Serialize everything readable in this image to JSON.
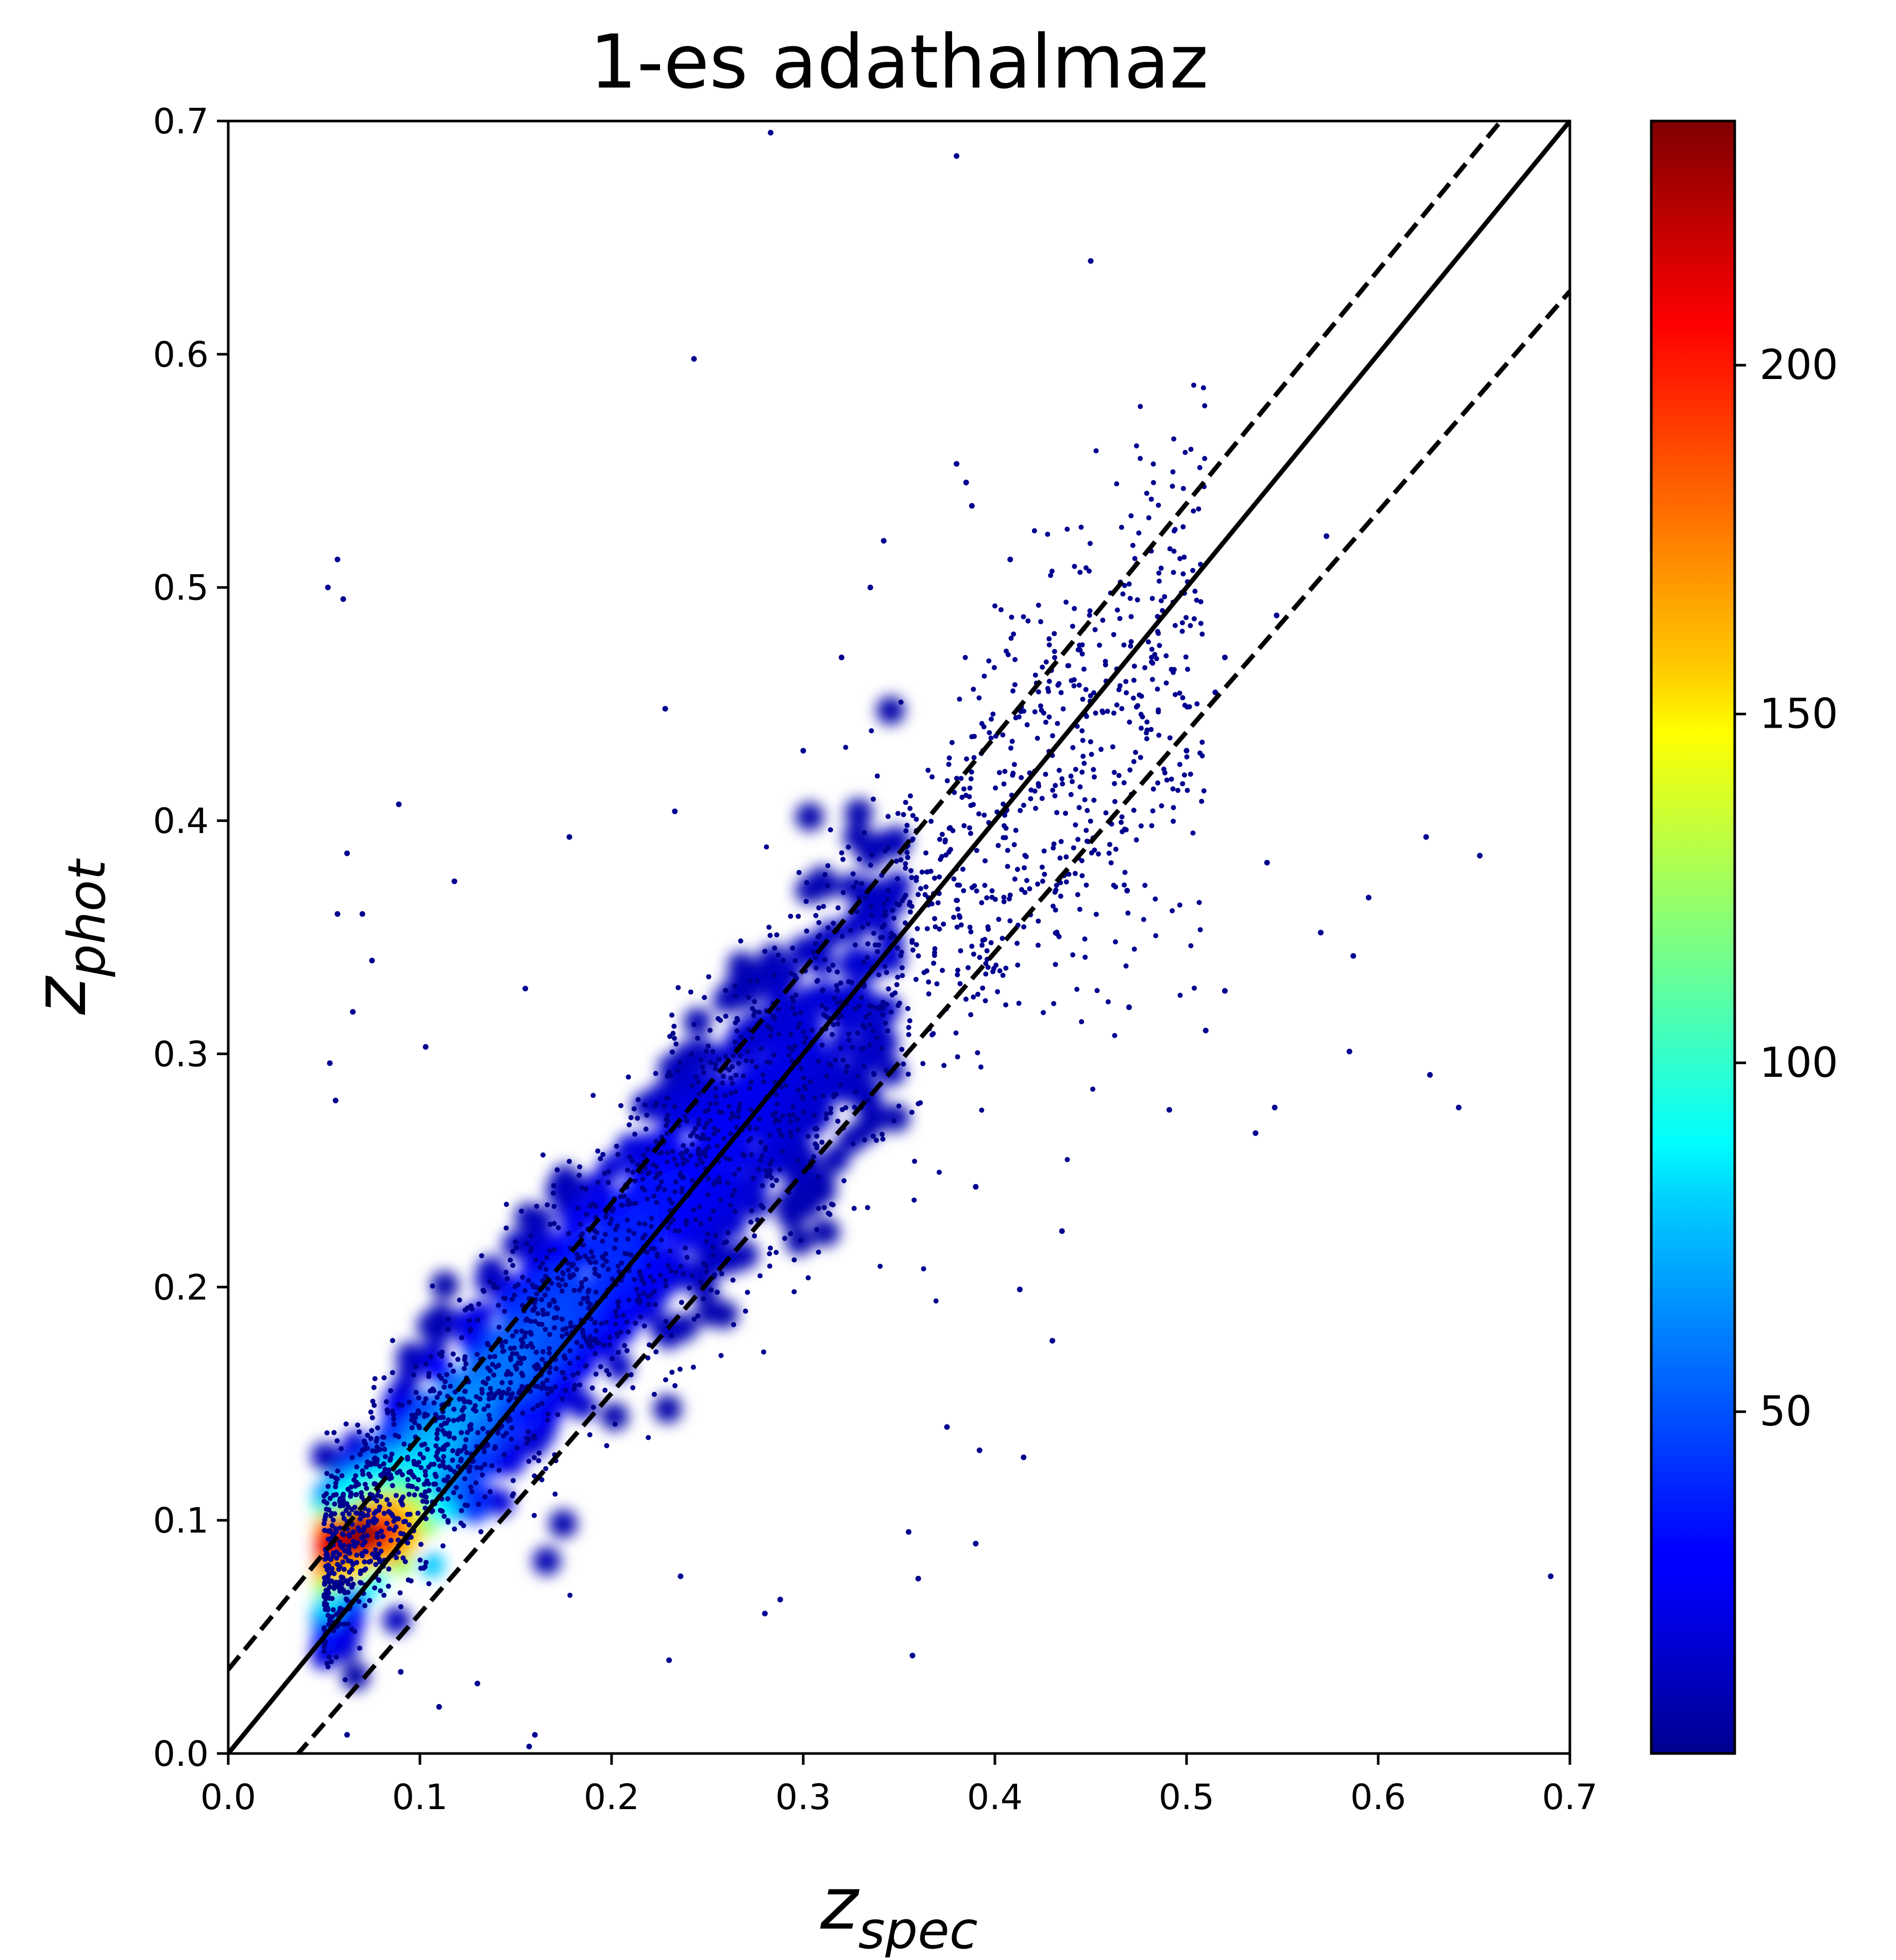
{
  "chart_data": {
    "type": "scatter",
    "title": "1-es adathalmaz",
    "xlabel": {
      "base": "z",
      "sub": "spec"
    },
    "ylabel": {
      "base": "z",
      "sub": "phot"
    },
    "xlim": [
      0.0,
      0.7
    ],
    "ylim": [
      0.0,
      0.7
    ],
    "xticks": [
      "0.0",
      "0.1",
      "0.2",
      "0.3",
      "0.4",
      "0.5",
      "0.6",
      "0.7"
    ],
    "yticks": [
      "0.0",
      "0.1",
      "0.2",
      "0.3",
      "0.4",
      "0.5",
      "0.6",
      "0.7"
    ],
    "grid": false,
    "colormap": "jet",
    "colorbar": {
      "range": [
        1,
        235
      ],
      "ticks": [
        50,
        100,
        150,
        200
      ],
      "tick_labels": [
        "50",
        "100",
        "150",
        "200"
      ]
    },
    "reference_lines": [
      {
        "style": "solid",
        "slope": 1.0,
        "intercept": 0.0
      },
      {
        "style": "dashed",
        "slope": 1.0,
        "intercept": 0.036
      },
      {
        "style": "dashed",
        "slope": 0.945,
        "intercept": -0.0345
      }
    ],
    "density_core": {
      "x": 0.075,
      "y": 0.092
    },
    "outliers": [
      [
        0.283,
        0.695
      ],
      [
        0.38,
        0.685
      ],
      [
        0.45,
        0.64
      ],
      [
        0.243,
        0.598
      ],
      [
        0.052,
        0.5
      ],
      [
        0.057,
        0.512
      ],
      [
        0.06,
        0.495
      ],
      [
        0.38,
        0.553
      ],
      [
        0.385,
        0.545
      ],
      [
        0.388,
        0.535
      ],
      [
        0.408,
        0.512
      ],
      [
        0.342,
        0.52
      ],
      [
        0.335,
        0.5
      ],
      [
        0.228,
        0.448
      ],
      [
        0.062,
        0.386
      ],
      [
        0.089,
        0.407
      ],
      [
        0.118,
        0.374
      ],
      [
        0.057,
        0.36
      ],
      [
        0.07,
        0.36
      ],
      [
        0.075,
        0.34
      ],
      [
        0.065,
        0.318
      ],
      [
        0.053,
        0.296
      ],
      [
        0.056,
        0.28
      ],
      [
        0.155,
        0.328
      ],
      [
        0.103,
        0.303
      ],
      [
        0.233,
        0.404
      ],
      [
        0.178,
        0.393
      ],
      [
        0.573,
        0.522
      ],
      [
        0.547,
        0.488
      ],
      [
        0.625,
        0.393
      ],
      [
        0.653,
        0.385
      ],
      [
        0.595,
        0.367
      ],
      [
        0.57,
        0.352
      ],
      [
        0.587,
        0.342
      ],
      [
        0.585,
        0.301
      ],
      [
        0.627,
        0.291
      ],
      [
        0.642,
        0.277
      ],
      [
        0.546,
        0.277
      ],
      [
        0.536,
        0.266
      ],
      [
        0.491,
        0.276
      ],
      [
        0.51,
        0.31
      ],
      [
        0.52,
        0.327
      ],
      [
        0.435,
        0.224
      ],
      [
        0.413,
        0.199
      ],
      [
        0.43,
        0.177
      ],
      [
        0.392,
        0.13
      ],
      [
        0.415,
        0.127
      ],
      [
        0.39,
        0.09
      ],
      [
        0.36,
        0.075
      ],
      [
        0.357,
        0.042
      ],
      [
        0.69,
        0.076
      ],
      [
        0.23,
        0.04
      ],
      [
        0.16,
        0.008
      ],
      [
        0.157,
        0.003
      ],
      [
        0.062,
        0.008
      ],
      [
        0.288,
        0.066
      ],
      [
        0.236,
        0.076
      ],
      [
        0.542,
        0.382
      ],
      [
        0.469,
        0.37
      ],
      [
        0.39,
        0.243
      ],
      [
        0.375,
        0.14
      ],
      [
        0.355,
        0.095
      ],
      [
        0.28,
        0.06
      ],
      [
        0.13,
        0.03
      ],
      [
        0.11,
        0.02
      ],
      [
        0.09,
        0.035
      ],
      [
        0.52,
        0.47
      ],
      [
        0.5,
        0.43
      ],
      [
        0.515,
        0.455
      ],
      [
        0.47,
        0.32
      ],
      [
        0.32,
        0.47
      ],
      [
        0.3,
        0.43
      ]
    ]
  }
}
